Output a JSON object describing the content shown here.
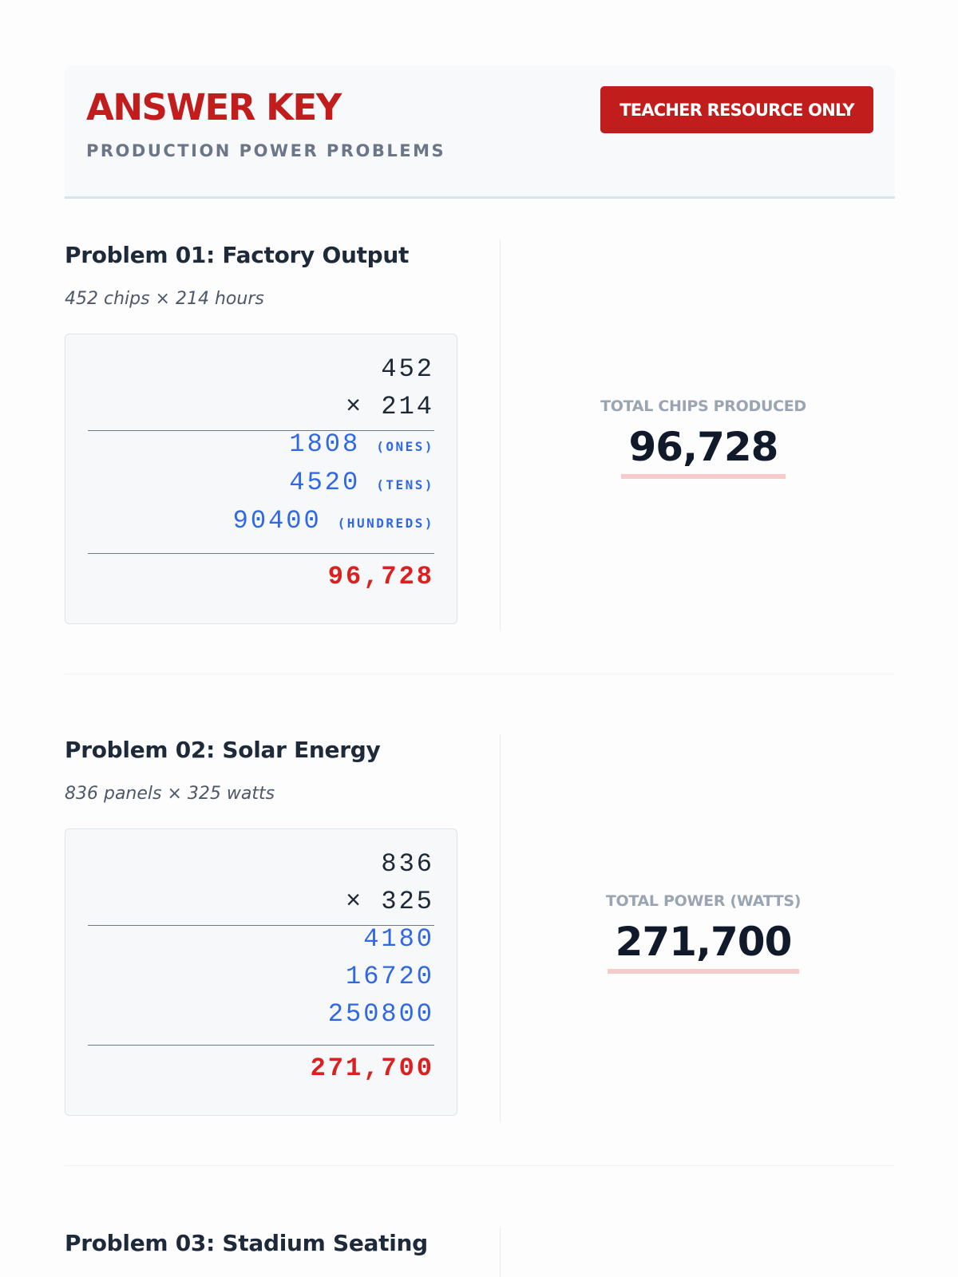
{
  "header": {
    "title": "ANSWER KEY",
    "subtitle": "PRODUCTION POWER PROBLEMS",
    "badge": "TEACHER RESOURCE ONLY"
  },
  "problems": [
    {
      "title": "Problem 01: Factory Output",
      "subtitle": "452 chips × 214 hours",
      "multiplicand": "452",
      "multiplier": "× 214",
      "partials": [
        {
          "value": "1808",
          "tag": "(ONES)"
        },
        {
          "value": "4520",
          "tag": "(TENS)"
        },
        {
          "value": "90400",
          "tag": "(HUNDREDS)"
        }
      ],
      "answer": "96,728",
      "result_label": "TOTAL CHIPS PRODUCED",
      "result_value": "96,728"
    },
    {
      "title": "Problem 02: Solar Energy",
      "subtitle": "836 panels × 325 watts",
      "multiplicand": "836",
      "multiplier": "× 325",
      "partials": [
        {
          "value": "4180"
        },
        {
          "value": "16720"
        },
        {
          "value": "250800"
        }
      ],
      "answer": "271,700",
      "result_label": "TOTAL POWER (WATTS)",
      "result_value": "271,700"
    },
    {
      "title": "Problem 03: Stadium Seating"
    }
  ],
  "colors": {
    "accent_red": "#c21d1d",
    "partial_blue": "#2f67e6",
    "answer_red": "#db2020",
    "underline_pink": "#f8c9c9"
  }
}
